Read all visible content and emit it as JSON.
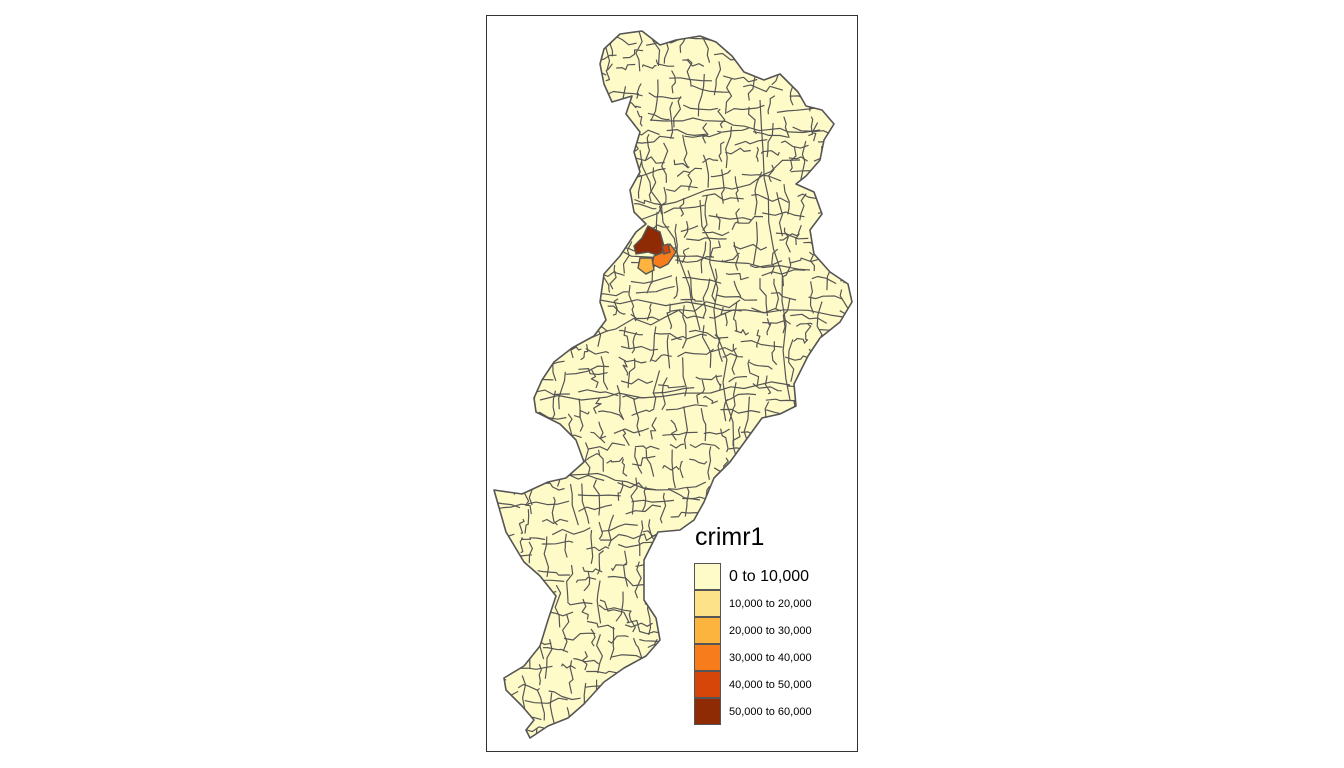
{
  "map": {
    "legend": {
      "title": "crimr1",
      "classes": [
        {
          "label": "0 to 10,000",
          "color": "#FFFBC8"
        },
        {
          "label": "10,000 to 20,000",
          "color": "#FEE289"
        },
        {
          "label": "20,000 to 30,000",
          "color": "#FDB43F"
        },
        {
          "label": "30,000 to 40,000",
          "color": "#F77C1C"
        },
        {
          "label": "40,000 to 50,000",
          "color": "#D64608"
        },
        {
          "label": "50,000 to 60,000",
          "color": "#8E2A04"
        }
      ]
    },
    "colors": {
      "border": "#555555",
      "frame": "#333333"
    }
  }
}
